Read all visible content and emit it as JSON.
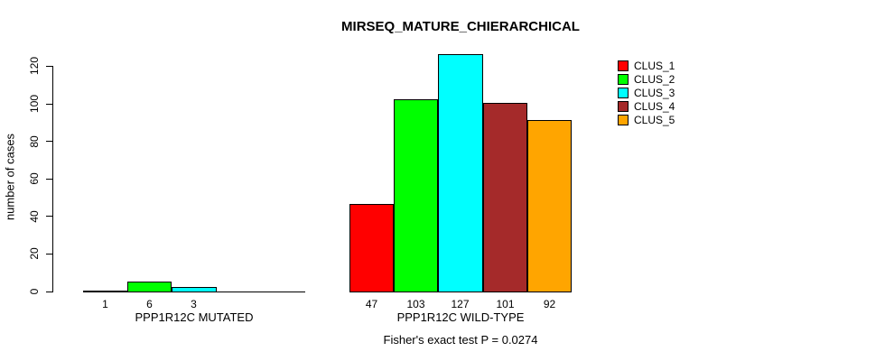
{
  "chart_data": {
    "type": "bar",
    "title": "MIRSEQ_MATURE_CHIERARCHICAL",
    "xlabel": "",
    "ylabel": "number of cases",
    "ylim": [
      0,
      130
    ],
    "yticks": [
      0,
      20,
      40,
      60,
      80,
      100,
      120
    ],
    "grid": false,
    "legend_position": "top-right",
    "series": [
      "CLUS_1",
      "CLUS_2",
      "CLUS_3",
      "CLUS_4",
      "CLUS_5"
    ],
    "series_colors": [
      "#FF0000",
      "#00FF00",
      "#00FFFF",
      "#A52A2A",
      "#FFA500"
    ],
    "groups": [
      {
        "label": "PPP1R12C MUTATED",
        "slots": 5,
        "values": [
          1,
          6,
          3
        ],
        "bar_labels": [
          "1",
          "6",
          "3"
        ],
        "colors": [
          "#FF0000",
          "#00FF00",
          "#00FFFF"
        ]
      },
      {
        "label": "PPP1R12C WILD-TYPE",
        "slots": 5,
        "values": [
          47,
          103,
          127,
          101,
          92
        ],
        "bar_labels": [
          "47",
          "103",
          "127",
          "101",
          "92"
        ],
        "colors": [
          "#FF0000",
          "#00FF00",
          "#00FFFF",
          "#A52A2A",
          "#FFA500"
        ]
      }
    ],
    "annotation": "Fisher's exact test P = 0.0274"
  }
}
